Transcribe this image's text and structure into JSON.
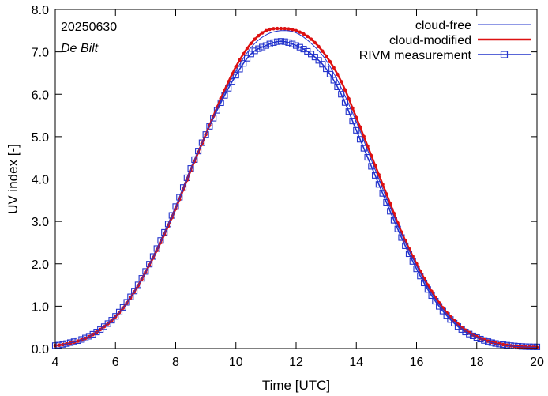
{
  "chart_data": {
    "type": "line",
    "date_label": "20250630",
    "location_label": "De Bilt",
    "xlabel": "Time  [UTC]",
    "ylabel": "UV index  [-]",
    "xlim": [
      4,
      20
    ],
    "ylim": [
      0,
      8
    ],
    "xticks": [
      4,
      6,
      8,
      10,
      12,
      14,
      16,
      18,
      20
    ],
    "yticks": [
      0.0,
      1.0,
      2.0,
      3.0,
      4.0,
      5.0,
      6.0,
      7.0,
      8.0
    ],
    "ytick_labels": [
      "0.0",
      "1.0",
      "2.0",
      "3.0",
      "4.0",
      "5.0",
      "6.0",
      "7.0",
      "8.0"
    ],
    "grid": false,
    "legend_position": "top-right",
    "series": [
      {
        "name": "cloud-free",
        "style": "thin-line",
        "color": "#2233cc",
        "x": [
          4.0,
          4.5,
          5.0,
          5.5,
          6.0,
          6.5,
          7.0,
          7.5,
          8.0,
          8.5,
          9.0,
          9.5,
          10.0,
          10.5,
          11.0,
          11.5,
          12.0,
          12.5,
          13.0,
          13.5,
          14.0,
          14.5,
          15.0,
          15.5,
          16.0,
          16.5,
          17.0,
          17.5,
          18.0,
          18.5,
          19.0,
          19.5,
          20.0
        ],
        "y": [
          0.07,
          0.13,
          0.24,
          0.45,
          0.75,
          1.2,
          1.8,
          2.5,
          3.3,
          4.2,
          5.05,
          5.85,
          6.55,
          7.1,
          7.4,
          7.5,
          7.45,
          7.2,
          6.8,
          6.15,
          5.35,
          4.45,
          3.55,
          2.7,
          1.95,
          1.3,
          0.82,
          0.48,
          0.27,
          0.14,
          0.07,
          0.04,
          0.03
        ]
      },
      {
        "name": "cloud-modified",
        "style": "thick-line-dots",
        "color": "#dd1111",
        "x": [
          4.0,
          4.5,
          5.0,
          5.5,
          6.0,
          6.5,
          7.0,
          7.5,
          8.0,
          8.5,
          9.0,
          9.5,
          10.0,
          10.5,
          11.0,
          11.5,
          12.0,
          12.5,
          13.0,
          13.5,
          14.0,
          14.5,
          15.0,
          15.5,
          16.0,
          16.5,
          17.0,
          17.5,
          18.0,
          18.5,
          19.0,
          19.5,
          20.0
        ],
        "y": [
          0.07,
          0.13,
          0.24,
          0.45,
          0.75,
          1.2,
          1.8,
          2.5,
          3.3,
          4.2,
          5.05,
          5.9,
          6.65,
          7.2,
          7.5,
          7.55,
          7.5,
          7.3,
          6.9,
          6.3,
          5.45,
          4.55,
          3.65,
          2.75,
          2.0,
          1.35,
          0.85,
          0.5,
          0.28,
          0.15,
          0.08,
          0.04,
          0.03
        ]
      },
      {
        "name": "RIVM measurement",
        "style": "line-squares",
        "color": "#2233cc",
        "x": [
          4.0,
          4.5,
          5.0,
          5.5,
          6.0,
          6.5,
          7.0,
          7.5,
          8.0,
          8.5,
          9.0,
          9.5,
          10.0,
          10.5,
          11.0,
          11.5,
          12.0,
          12.5,
          13.0,
          13.5,
          14.0,
          14.5,
          15.0,
          15.5,
          16.0,
          16.5,
          17.0,
          17.5,
          18.0,
          18.5,
          19.0,
          19.5,
          20.0
        ],
        "y": [
          0.07,
          0.14,
          0.25,
          0.45,
          0.76,
          1.22,
          1.82,
          2.55,
          3.35,
          4.25,
          5.05,
          5.8,
          6.45,
          6.95,
          7.15,
          7.25,
          7.15,
          6.95,
          6.6,
          6.0,
          5.15,
          4.3,
          3.45,
          2.62,
          1.88,
          1.25,
          0.78,
          0.45,
          0.26,
          0.14,
          0.08,
          0.05,
          0.04
        ]
      }
    ]
  }
}
